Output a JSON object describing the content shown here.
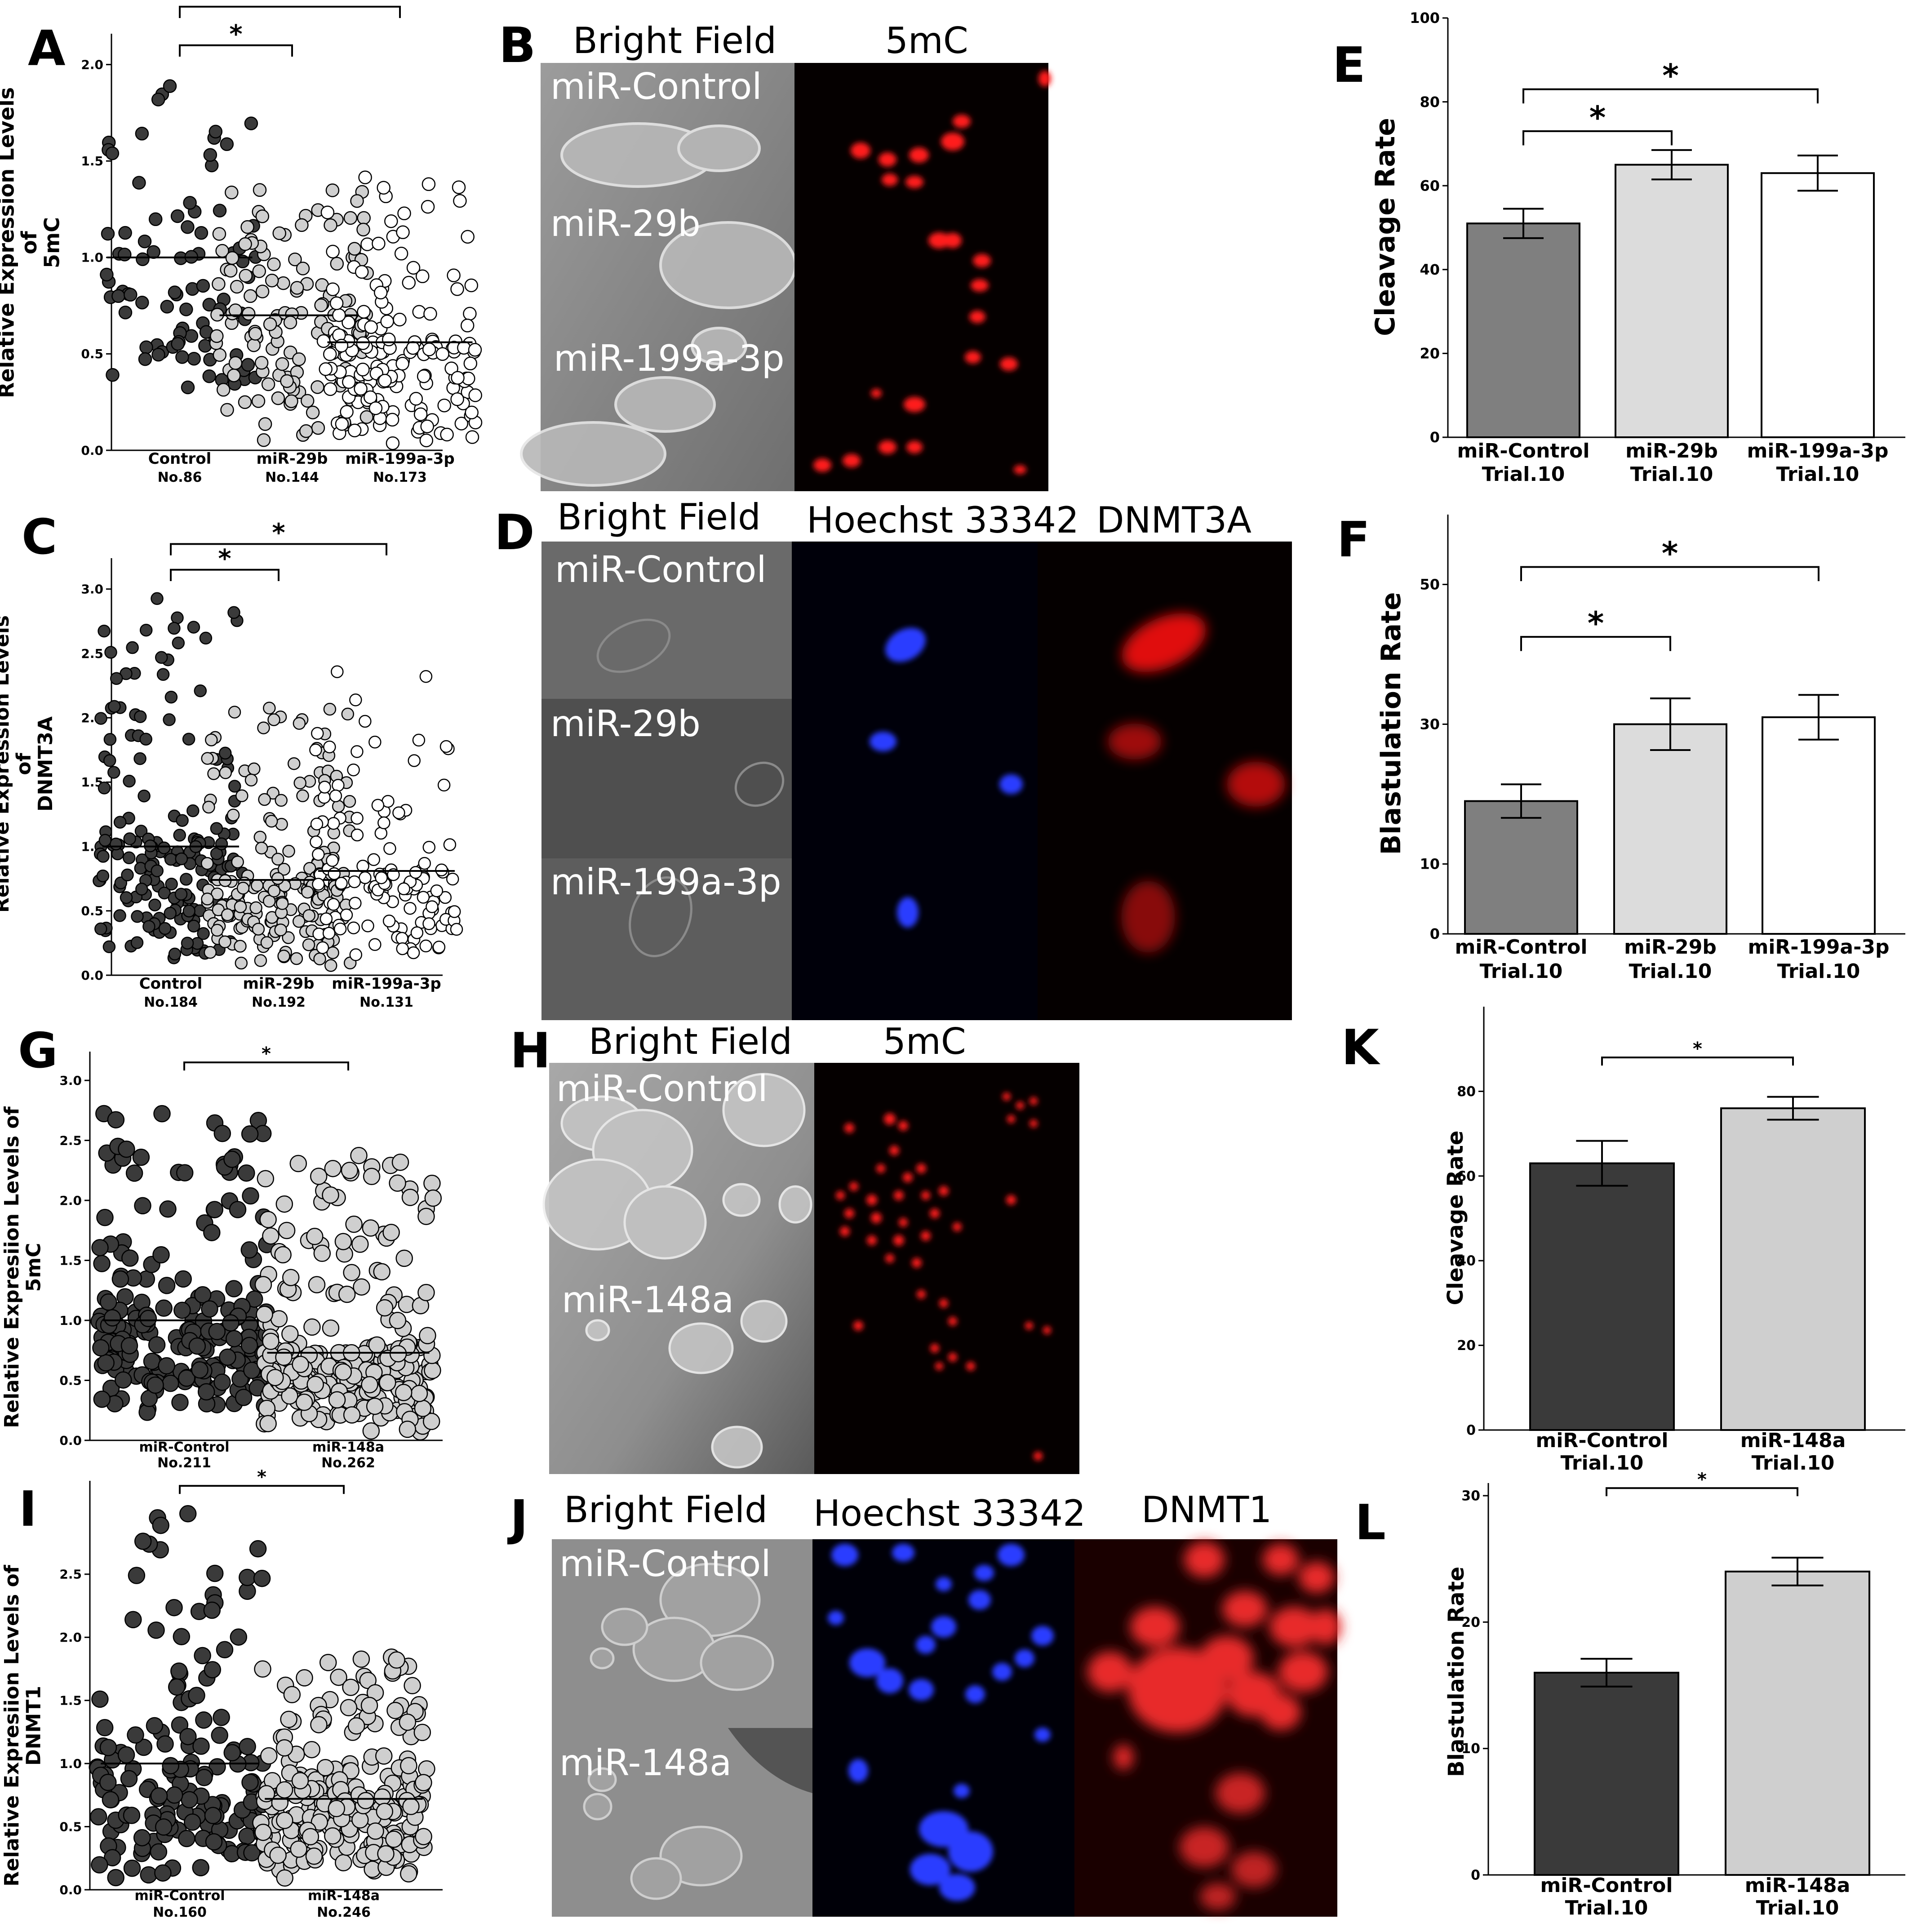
{
  "panel_labels": {
    "A": "A",
    "B": "B",
    "C": "C",
    "D": "D",
    "E": "E",
    "F": "F",
    "G": "G",
    "H": "H",
    "I": "I",
    "J": "J",
    "K": "K",
    "L": "L"
  },
  "significance_marker": "*",
  "chart_data": [
    {
      "id": "A",
      "type": "scatter",
      "ylabel": "Relative Expression Levels of 5mC",
      "ylabel_lines": [
        "Relative Expression Levels",
        "of",
        "5mC"
      ],
      "ylim": [
        0,
        2.0
      ],
      "yticks": [
        0.0,
        0.5,
        1.0,
        1.5,
        2.0
      ],
      "ytick_labels": [
        "0.0",
        "0.5",
        "1.0",
        "1.5",
        "2.0"
      ],
      "categories": [
        "Control",
        "miR-29b",
        "miR-199a-3p"
      ],
      "counts": [
        "No.86",
        "No.144",
        "No.173"
      ],
      "n": [
        86,
        144,
        173
      ],
      "means": [
        1.0,
        0.7,
        0.56
      ],
      "ranges": [
        [
          0.28,
          1.98
        ],
        [
          0.05,
          1.36
        ],
        [
          0.03,
          1.42
        ]
      ],
      "point_colors": [
        "#3a3a3a",
        "#cfcfcf",
        "#ffffff"
      ],
      "comparisons": [
        {
          "groups": [
            0,
            1
          ],
          "y": 2.1,
          "label": "*"
        },
        {
          "groups": [
            0,
            2
          ],
          "y": 2.3,
          "label": "*"
        }
      ]
    },
    {
      "id": "C",
      "type": "scatter",
      "ylabel": "Relative Expression Levels of DNMT3A",
      "ylabel_lines": [
        "Relative Expression Levels",
        "of",
        "DNMT3A"
      ],
      "ylim": [
        0,
        3.0
      ],
      "yticks": [
        0.0,
        0.5,
        1.0,
        1.5,
        2.0,
        2.5,
        3.0
      ],
      "ytick_labels": [
        "0.0",
        "0.5",
        "1.0",
        "1.5",
        "2.0",
        "2.5",
        "3.0"
      ],
      "categories": [
        "Control",
        "miR-29b",
        "miR-199a-3p"
      ],
      "counts": [
        "No.184",
        "No.192",
        "No.131"
      ],
      "n": [
        184,
        192,
        131
      ],
      "means": [
        1.0,
        0.74,
        0.81
      ],
      "ranges": [
        [
          0.1,
          2.93
        ],
        [
          0.06,
          2.17
        ],
        [
          0.12,
          2.38
        ]
      ],
      "point_colors": [
        "#3a3a3a",
        "#cfcfcf",
        "#ffffff"
      ],
      "comparisons": [
        {
          "groups": [
            0,
            1
          ],
          "y": 3.15,
          "label": "*"
        },
        {
          "groups": [
            0,
            2
          ],
          "y": 3.35,
          "label": "*"
        }
      ]
    },
    {
      "id": "G",
      "type": "scatter",
      "ylabel": "Relative Expresiion Levels of 5mC",
      "ylabel_lines": [
        "Relative Expresiion Levels of",
        "5mC"
      ],
      "ylim": [
        0,
        3.0
      ],
      "yticks": [
        0.0,
        0.5,
        1.0,
        1.5,
        2.0,
        2.5,
        3.0
      ],
      "ytick_labels": [
        "0.0",
        "0.5",
        "1.0",
        "1.5",
        "2.0",
        "2.5",
        "3.0"
      ],
      "categories": [
        "miR-Control",
        "miR-148a"
      ],
      "counts": [
        "No.211",
        "No.262"
      ],
      "n": [
        211,
        262
      ],
      "means": [
        1.0,
        0.73
      ],
      "ranges": [
        [
          0.18,
          2.8
        ],
        [
          0.06,
          2.4
        ]
      ],
      "point_colors": [
        "#3a3a3a",
        "#cfcfcf"
      ],
      "comparisons": [
        {
          "groups": [
            0,
            1
          ],
          "y": 3.15,
          "label": "*"
        }
      ]
    },
    {
      "id": "I",
      "type": "scatter",
      "ylabel": "Relative Expresiion Levels of DNMT1",
      "ylabel_lines": [
        "Relative Expresiion Levels of",
        "DNMT1"
      ],
      "ylim": [
        0,
        3.0
      ],
      "yticks": [
        0.0,
        0.5,
        1.0,
        1.5,
        2.0,
        2.5
      ],
      "ytick_labels": [
        "0.0",
        "0.5",
        "1.0",
        "1.5",
        "2.0",
        "2.5"
      ],
      "categories": [
        "miR-Control",
        "miR-148a"
      ],
      "counts": [
        "No.160",
        "No.246"
      ],
      "n": [
        160,
        246
      ],
      "means": [
        1.0,
        0.72
      ],
      "ranges": [
        [
          0.08,
          2.98
        ],
        [
          0.08,
          1.85
        ]
      ],
      "point_colors": [
        "#3a3a3a",
        "#cfcfcf"
      ],
      "comparisons": [
        {
          "groups": [
            0,
            1
          ],
          "y": 3.2,
          "label": "*"
        }
      ]
    },
    {
      "id": "E",
      "type": "bar",
      "ylabel": "Cleavage Rate",
      "ylim": [
        0,
        100
      ],
      "yticks": [
        0,
        20,
        40,
        60,
        80,
        100
      ],
      "ytick_labels": [
        "0",
        "20",
        "40",
        "60",
        "80",
        "100"
      ],
      "categories": [
        "miR-Control",
        "miR-29b",
        "miR-199a-3p"
      ],
      "category_sublabels": [
        "Trial.10",
        "Trial.10",
        "Trial.10"
      ],
      "values": [
        51,
        65,
        63
      ],
      "errors": [
        3.5,
        3.5,
        4.2
      ],
      "bar_colors": [
        "#7f7f7f",
        "#dcdcdc",
        "#ffffff"
      ],
      "comparisons": [
        {
          "groups": [
            0,
            1
          ],
          "y": 73,
          "label": "*"
        },
        {
          "groups": [
            0,
            2
          ],
          "y": 83,
          "label": "*"
        }
      ]
    },
    {
      "id": "F",
      "type": "bar",
      "ylabel": "Blastulation Rate",
      "ylim": [
        0,
        60
      ],
      "yticks": [
        0,
        10,
        30,
        50
      ],
      "ytick_labels": [
        "0",
        "10",
        "30",
        "50"
      ],
      "categories": [
        "miR-Control",
        "miR-29b",
        "miR-199a-3p"
      ],
      "category_sublabels": [
        "Trial.10",
        "Trial.10",
        "Trial.10"
      ],
      "values": [
        19,
        30,
        31
      ],
      "errors": [
        2.4,
        3.7,
        3.2
      ],
      "bar_colors": [
        "#7f7f7f",
        "#dcdcdc",
        "#ffffff"
      ],
      "comparisons": [
        {
          "groups": [
            0,
            1
          ],
          "y": 42.5,
          "label": "*"
        },
        {
          "groups": [
            0,
            2
          ],
          "y": 52.5,
          "label": "*"
        }
      ]
    },
    {
      "id": "K",
      "type": "bar",
      "ylabel": "Cleavage Rate",
      "ylim": [
        0,
        100
      ],
      "yticks": [
        0,
        20,
        40,
        60,
        80
      ],
      "ytick_labels": [
        "0",
        "20",
        "40",
        "60",
        "80"
      ],
      "categories": [
        "miR-Control",
        "miR-148a"
      ],
      "category_sublabels": [
        "Trial.10",
        "Trial.10"
      ],
      "values": [
        63,
        76
      ],
      "errors": [
        5.3,
        2.7
      ],
      "bar_colors": [
        "#3a3a3a",
        "#cfcfcf"
      ],
      "comparisons": [
        {
          "groups": [
            0,
            1
          ],
          "y": 88,
          "label": "*"
        }
      ]
    },
    {
      "id": "L",
      "type": "bar",
      "ylabel": "Blastulation Rate",
      "ylim": [
        0,
        31
      ],
      "yticks": [
        0,
        10,
        20,
        30
      ],
      "ytick_labels": [
        "0",
        "10",
        "20",
        "30"
      ],
      "categories": [
        "miR-Control",
        "miR-148a"
      ],
      "category_sublabels": [
        "Trial.10",
        "Trial.10"
      ],
      "values": [
        16,
        24
      ],
      "errors": [
        1.1,
        1.1
      ],
      "bar_colors": [
        "#3a3a3a",
        "#cfcfcf"
      ],
      "comparisons": [
        {
          "groups": [
            0,
            1
          ],
          "y": 30.6,
          "label": "*"
        }
      ]
    }
  ],
  "image_panels": [
    {
      "id": "B",
      "column_titles": [
        "Bright Field",
        "5mC"
      ],
      "row_labels": [
        "miR-Control",
        "miR-29b",
        "miR-199a-3p"
      ],
      "channel_colors": [
        "#8a8a8a",
        "#ff1a1a"
      ]
    },
    {
      "id": "D",
      "column_titles": [
        "Bright Field",
        "Hoechst 33342",
        "DNMT3A"
      ],
      "row_labels": [
        "miR-Control",
        "miR-29b",
        "miR-199a-3p"
      ],
      "channel_colors": [
        "#555555",
        "#1a2cff",
        "#ff1a1a"
      ]
    },
    {
      "id": "H",
      "column_titles": [
        "Bright Field",
        "5mC"
      ],
      "row_labels": [
        "miR-Control",
        "miR-148a"
      ],
      "channel_colors": [
        "#9a9a9a",
        "#ff1a1a"
      ]
    },
    {
      "id": "J",
      "column_titles": [
        "Bright Field",
        "Hoechst 33342",
        "DNMT1"
      ],
      "row_labels": [
        "miR-Control",
        "miR-148a"
      ],
      "channel_colors": [
        "#8a8a8a",
        "#1a2cff",
        "#ff1a1a"
      ]
    }
  ]
}
